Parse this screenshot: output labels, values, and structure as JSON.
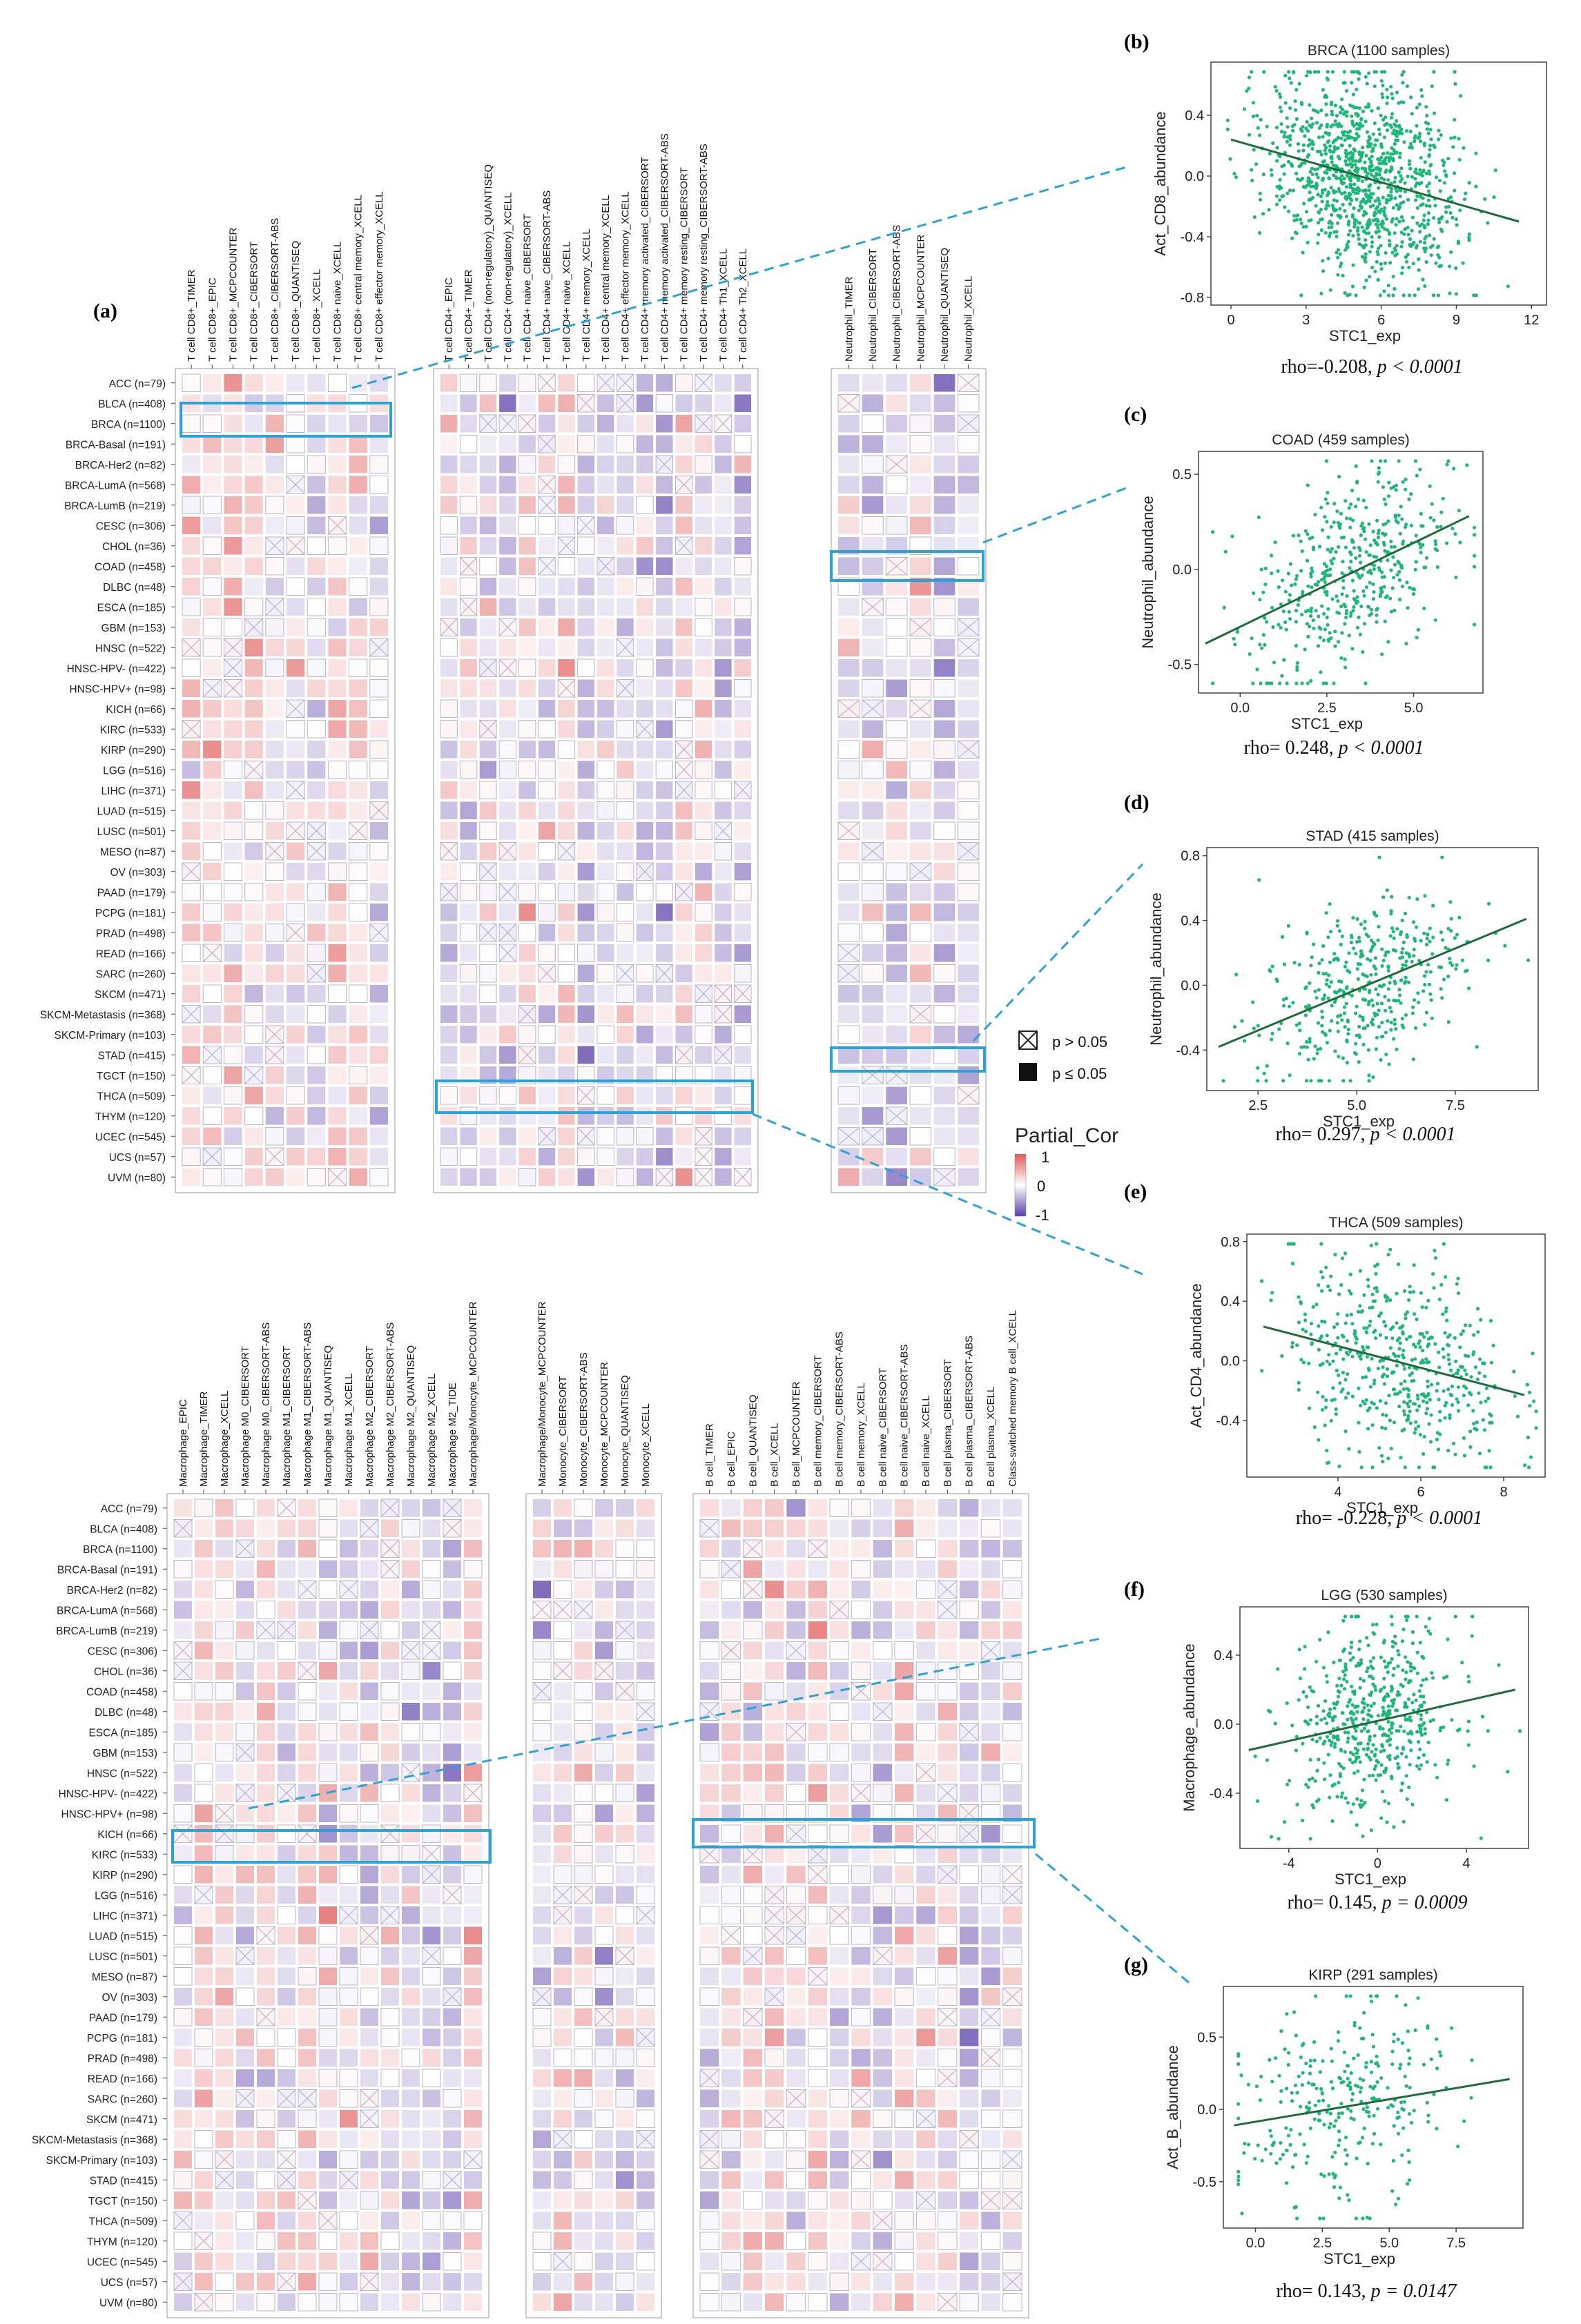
{
  "panel_labels": {
    "a": "(a)",
    "b": "(b)",
    "c": "(c)",
    "d": "(d)",
    "e": "(e)",
    "f": "(f)",
    "g": "(g)"
  },
  "legend": {
    "nonsig": "p > 0.05",
    "sig": "p ≤ 0.05",
    "title": "Partial_Cor",
    "max": "1",
    "mid": "0",
    "min": "-1",
    "color_pos": "#e05a5a",
    "color_neg": "#5b3fa8",
    "color_mid": "#ffffff"
  },
  "chart_data": [
    {
      "type": "heatmap",
      "name": "cancer types (rows)",
      "rows": [
        "ACC (n=79)",
        "BLCA (n=408)",
        "BRCA (n=1100)",
        "BRCA-Basal (n=191)",
        "BRCA-Her2 (n=82)",
        "BRCA-LumA (n=568)",
        "BRCA-LumB (n=219)",
        "CESC (n=306)",
        "CHOL (n=36)",
        "COAD (n=458)",
        "DLBC (n=48)",
        "ESCA (n=185)",
        "GBM (n=153)",
        "HNSC (n=522)",
        "HNSC-HPV- (n=422)",
        "HNSC-HPV+ (n=98)",
        "KICH (n=66)",
        "KIRC (n=533)",
        "KIRP (n=290)",
        "LGG (n=516)",
        "LIHC (n=371)",
        "LUAD (n=515)",
        "LUSC (n=501)",
        "MESO (n=87)",
        "OV (n=303)",
        "PAAD (n=179)",
        "PCPG (n=181)",
        "PRAD (n=498)",
        "READ (n=166)",
        "SARC (n=260)",
        "SKCM (n=471)",
        "SKCM-Metastasis (n=368)",
        "SKCM-Primary (n=103)",
        "STAD (n=415)",
        "TGCT (n=150)",
        "THCA (n=509)",
        "THYM (n=120)",
        "UCEC (n=545)",
        "UCS (n=57)",
        "UVM (n=80)"
      ]
    },
    {
      "type": "heatmap",
      "name": "T cell CD8+",
      "value_range": [
        -1,
        1
      ],
      "columns": [
        "T cell CD8+_TIMER",
        "T cell CD8+_EPIC",
        "T cell CD8+_MCPCOUNTER",
        "T cell CD8+_CIBERSORT",
        "T cell CD8+_CIBERSORT-ABS",
        "T cell CD8+_QUANTISEQ",
        "T cell CD8+_XCELL",
        "T cell CD8+ naive_XCELL",
        "T cell CD8+ central memory_XCELL",
        "T cell CD8+ effector memory_XCELL"
      ]
    },
    {
      "type": "heatmap",
      "name": "T cell CD4+",
      "value_range": [
        -1,
        1
      ],
      "columns": [
        "T cell CD4+_EPIC",
        "T cell CD4+_TIMER",
        "T cell CD4+ (non-regulatory)_QUANTISEQ",
        "T cell CD4+ (non-regulatory)_XCELL",
        "T cell CD4+ naive_CIBERSORT",
        "T cell CD4+ naive_CIBERSORT-ABS",
        "T cell CD4+ naive_XCELL",
        "T cell CD4+ memory_XCELL",
        "T cell CD4+ central memory_XCELL",
        "T cell CD4+ effector memory_XCELL",
        "T cell CD4+ memory activated_CIBERSORT",
        "T cell CD4+ memory activated_CIBERSORT-ABS",
        "T cell CD4+ memory resting_CIBERSORT",
        "T cell CD4+ memory resting_CIBERSORT-ABS",
        "T cell CD4+ Th1_XCELL",
        "T cell CD4+ Th2_XCELL"
      ]
    },
    {
      "type": "heatmap",
      "name": "Neutrophil",
      "value_range": [
        -1,
        1
      ],
      "columns": [
        "Neutrophil_TIMER",
        "Neutrophil_CIBERSORT",
        "Neutrophil_CIBERSORT-ABS",
        "Neutrophil_MCPCOUNTER",
        "Neutrophil_QUANTISEQ",
        "Neutrophil_XCELL"
      ]
    },
    {
      "type": "heatmap",
      "name": "Macrophage",
      "value_range": [
        -1,
        1
      ],
      "columns": [
        "Macrophage_EPIC",
        "Macrophage_TIMER",
        "Macrophage_XCELL",
        "Macrophage M0_CIBERSORT",
        "Macrophage M0_CIBERSORT-ABS",
        "Macrophage M1_CIBERSORT",
        "Macrophage M1_CIBERSORT-ABS",
        "Macrophage M1_QUANTISEQ",
        "Macrophage M1_XCELL",
        "Macrophage M2_CIBERSORT",
        "Macrophage M2_CIBERSORT-ABS",
        "Macrophage M2_QUANTISEQ",
        "Macrophage M2_XCELL",
        "Macrophage M2_TIDE",
        "Macrophage/Monocyte_MCPCOUNTER"
      ]
    },
    {
      "type": "heatmap",
      "name": "Monocyte",
      "value_range": [
        -1,
        1
      ],
      "columns": [
        "Macrophage/Monocyte_MCPCOUNTER",
        "Monocyte_CIBERSORT",
        "Monocyte_CIBERSORT-ABS",
        "Monocyte_MCPCOUNTER",
        "Monocyte_QUANTISEQ",
        "Monocyte_XCELL"
      ]
    },
    {
      "type": "heatmap",
      "name": "B cell",
      "value_range": [
        -1,
        1
      ],
      "columns": [
        "B cell_TIMER",
        "B cell_EPIC",
        "B cell_QUANTISEQ",
        "B cell_XCELL",
        "B cell_MCPCOUNTER",
        "B cell memory_CIBERSORT",
        "B cell memory_CIBERSORT-ABS",
        "B cell memory_XCELL",
        "B cell naive_CIBERSORT",
        "B cell naive_CIBERSORT-ABS",
        "B cell naive_XCELL",
        "B cell plasma_CIBERSORT",
        "B cell plasma_CIBERSORT-ABS",
        "B cell plasma_XCELL",
        "Class-switched memory B cell_XCELL"
      ]
    },
    {
      "type": "scatter",
      "panel": "b",
      "title": "BRCA (1100 samples)",
      "xlabel": "STC1_exp",
      "ylabel": "Act_CD8_abundance",
      "xlim": [
        -0.8,
        12.6
      ],
      "ylim": [
        -0.85,
        0.75
      ],
      "xticks": [
        "0",
        "3",
        "6",
        "9",
        "12"
      ],
      "yticks": [
        "-0.8",
        "-0.4",
        "0.0",
        "0.4"
      ],
      "n_points": 1100,
      "x_mean": 5.3,
      "x_sd": 1.9,
      "y_sd": 0.33,
      "fit": {
        "x": [
          0,
          11.5
        ],
        "y": [
          0.24,
          -0.3
        ]
      },
      "stat_rho": "rho=-0.208, ",
      "stat_p": "p < 0.0001"
    },
    {
      "type": "scatter",
      "panel": "c",
      "title": "COAD (459 samples)",
      "xlabel": "STC1_exp",
      "ylabel": "Neutrophil_abundance",
      "xlim": [
        -1.2,
        7.0
      ],
      "ylim": [
        -0.65,
        0.62
      ],
      "xticks": [
        "0.0",
        "2.5",
        "5.0"
      ],
      "yticks": [
        "-0.5",
        "0.0",
        "0.5"
      ],
      "n_points": 459,
      "x_mean": 3.2,
      "x_sd": 1.4,
      "y_sd": 0.27,
      "fit": {
        "x": [
          -1.0,
          6.6
        ],
        "y": [
          -0.39,
          0.28
        ]
      },
      "stat_rho": "rho= 0.248, ",
      "stat_p": "p < 0.0001"
    },
    {
      "type": "scatter",
      "panel": "d",
      "title": "STAD (415 samples)",
      "xlabel": "STC1_exp",
      "ylabel": "Neutrophil_abundance",
      "xlim": [
        1.2,
        9.6
      ],
      "ylim": [
        -0.65,
        0.85
      ],
      "xticks": [
        "2.5",
        "5.0",
        "7.5"
      ],
      "yticks": [
        "-0.4",
        "0.0",
        "0.4",
        "0.8"
      ],
      "n_points": 415,
      "x_mean": 5.1,
      "x_sd": 1.3,
      "y_sd": 0.26,
      "fit": {
        "x": [
          1.5,
          9.3
        ],
        "y": [
          -0.38,
          0.41
        ]
      },
      "stat_rho": "rho= 0.297, ",
      "stat_p": "p < 0.0001"
    },
    {
      "type": "scatter",
      "panel": "e",
      "title": "THCA (509 samples)",
      "xlabel": "STC1_exp",
      "ylabel": "Act_CD4_abundance",
      "xlim": [
        1.8,
        9.0
      ],
      "ylim": [
        -0.78,
        0.85
      ],
      "xticks": [
        "4",
        "6",
        "8"
      ],
      "yticks": [
        "-0.4",
        "0.0",
        "0.4",
        "0.8"
      ],
      "n_points": 509,
      "x_mean": 5.5,
      "x_sd": 1.3,
      "y_sd": 0.34,
      "fit": {
        "x": [
          2.2,
          8.5
        ],
        "y": [
          0.23,
          -0.23
        ]
      },
      "stat_rho": "rho= -0.228, ",
      "stat_p": "p < 0.0001"
    },
    {
      "type": "scatter",
      "panel": "f",
      "title": "LGG (530 samples)",
      "xlabel": "STC1_exp",
      "ylabel": "Macrophage_abundance",
      "xlim": [
        -6.2,
        6.8
      ],
      "ylim": [
        -0.72,
        0.68
      ],
      "xticks": [
        "-4",
        "0",
        "4"
      ],
      "yticks": [
        "-0.4",
        "0.0",
        "0.4"
      ],
      "n_points": 530,
      "x_mean": -0.2,
      "x_sd": 1.9,
      "y_sd": 0.27,
      "fit": {
        "x": [
          -5.8,
          6.2
        ],
        "y": [
          -0.15,
          0.2
        ]
      },
      "stat_rho": "rho= 0.145, ",
      "stat_p": "p = 0.0009"
    },
    {
      "type": "scatter",
      "panel": "g",
      "title": "KIRP (291 samples)",
      "xlabel": "STC1_exp",
      "ylabel": "Act_B_abundance",
      "xlim": [
        -1.2,
        10.0
      ],
      "ylim": [
        -0.82,
        0.85
      ],
      "xticks": [
        "0.0",
        "2.5",
        "5.0",
        "7.5"
      ],
      "yticks": [
        "-0.5",
        "0.0",
        "0.5"
      ],
      "n_points": 291,
      "x_mean": 3.2,
      "x_sd": 1.9,
      "y_sd": 0.35,
      "fit": {
        "x": [
          -0.8,
          9.5
        ],
        "y": [
          -0.11,
          0.21
        ]
      },
      "stat_rho": "rho= 0.143, ",
      "stat_p": "p = 0.0147"
    }
  ]
}
